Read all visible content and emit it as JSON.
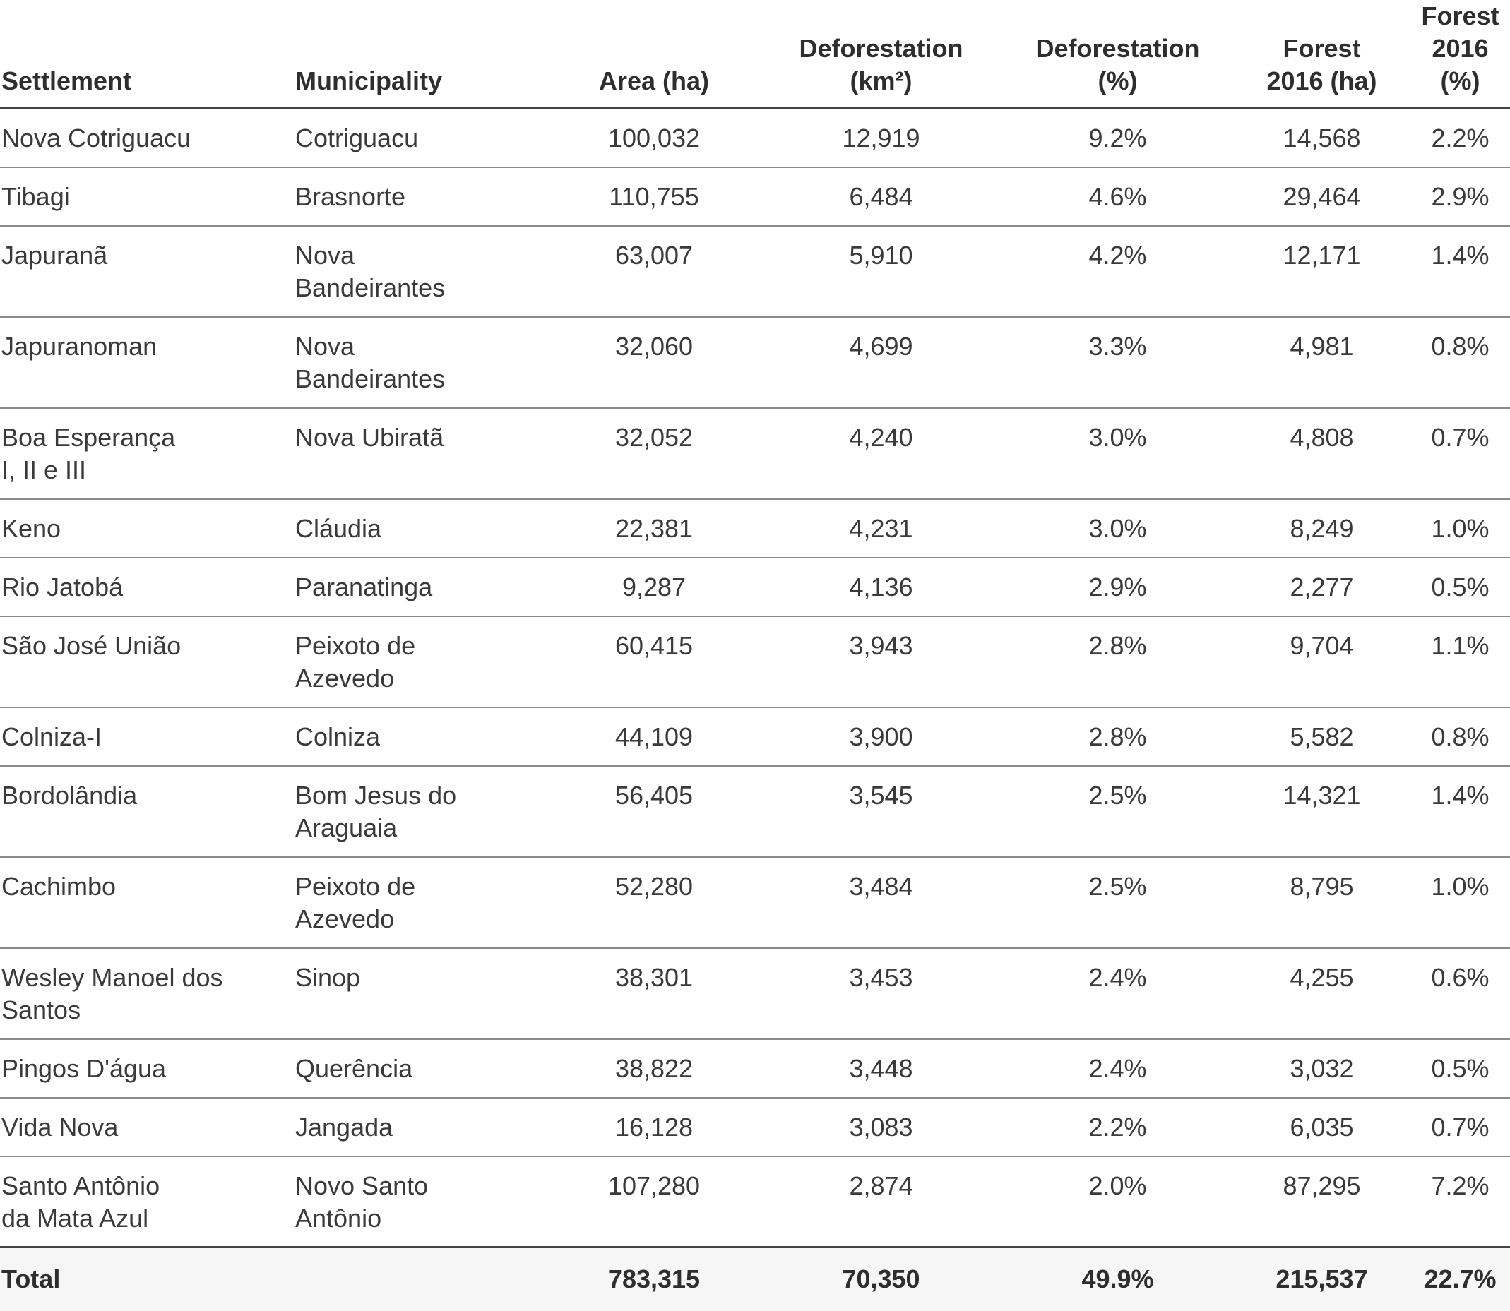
{
  "headers": [
    "Settlement",
    "Municipality",
    "Area (ha)",
    "Deforestation\n(km²)",
    "Deforestation\n(%)",
    "Forest\n2016 (ha)",
    "Forest\n2016 (%)"
  ],
  "rows": [
    [
      "Nova Cotriguacu",
      "Cotriguacu",
      "100,032",
      "12,919",
      "9.2%",
      "14,568",
      "2.2%"
    ],
    [
      "Tibagi",
      "Brasnorte",
      "110,755",
      "6,484",
      "4.6%",
      "29,464",
      "2.9%"
    ],
    [
      "Japuranã",
      "Nova\nBandeirantes",
      "63,007",
      "5,910",
      "4.2%",
      "12,171",
      "1.4%"
    ],
    [
      "Japuranoman",
      "Nova\nBandeirantes",
      "32,060",
      "4,699",
      "3.3%",
      "4,981",
      "0.8%"
    ],
    [
      "Boa Esperança\nI, II e III",
      "Nova Ubiratã",
      "32,052",
      "4,240",
      "3.0%",
      "4,808",
      "0.7%"
    ],
    [
      "Keno",
      "Cláudia",
      "22,381",
      "4,231",
      "3.0%",
      "8,249",
      "1.0%"
    ],
    [
      "Rio Jatobá",
      "Paranatinga",
      "9,287",
      "4,136",
      "2.9%",
      "2,277",
      "0.5%"
    ],
    [
      "São José União",
      "Peixoto de\nAzevedo",
      "60,415",
      "3,943",
      "2.8%",
      "9,704",
      "1.1%"
    ],
    [
      "Colniza-I",
      " Colniza",
      "44,109",
      "3,900",
      "2.8%",
      "5,582",
      "0.8%"
    ],
    [
      "Bordolândia",
      "Bom Jesus do\nAraguaia",
      "56,405",
      "3,545",
      "2.5%",
      "14,321",
      "1.4%"
    ],
    [
      "Cachimbo",
      "Peixoto de\nAzevedo",
      "52,280",
      "3,484",
      "2.5%",
      "8,795",
      "1.0%"
    ],
    [
      "Wesley Manoel dos\nSantos",
      "Sinop",
      "38,301",
      "3,453",
      "2.4%",
      "4,255",
      "0.6%"
    ],
    [
      "Pingos D'água",
      "Querência",
      "38,822",
      "3,448",
      "2.4%",
      "3,032",
      "0.5%"
    ],
    [
      "Vida Nova",
      "Jangada",
      "16,128",
      "3,083",
      "2.2%",
      "6,035",
      "0.7%"
    ],
    [
      "Santo Antônio\nda Mata Azul",
      "Novo Santo\nAntônio",
      "107,280",
      "2,874",
      "2.0%",
      "87,295",
      "7.2%"
    ]
  ],
  "total": {
    "label": "Total",
    "municipality": "",
    "area": "783,315",
    "deforestation_km2": "70,350",
    "deforestation_pct": "49.9%",
    "forest_ha": "215,537",
    "forest_pct": "22.7%"
  }
}
